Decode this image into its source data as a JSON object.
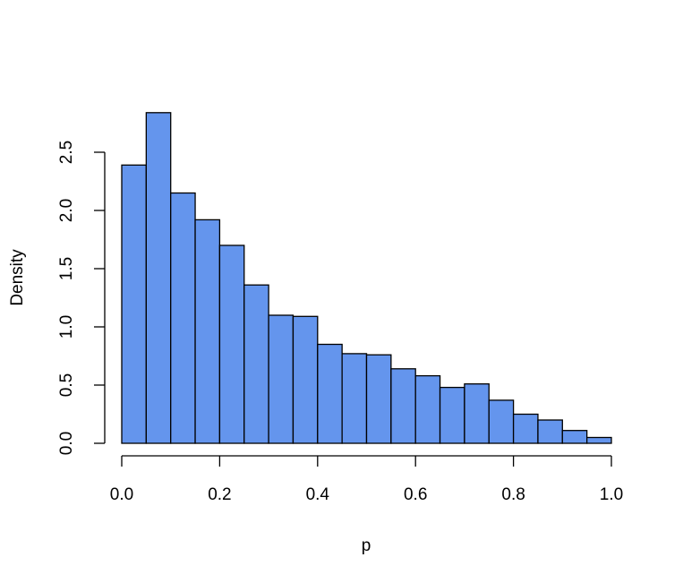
{
  "chart_data": {
    "type": "bar",
    "title": "",
    "xlabel": "p",
    "ylabel": "Density",
    "xlim": [
      0,
      1
    ],
    "ylim": [
      0,
      2.85
    ],
    "grid": false,
    "bar_color": "#6495ED",
    "bar_edge_color": "#000000",
    "x_ticks": [
      "0.0",
      "0.2",
      "0.4",
      "0.6",
      "0.8",
      "1.0"
    ],
    "y_ticks": [
      "0.0",
      "0.5",
      "1.0",
      "1.5",
      "2.0",
      "2.5"
    ],
    "bins": [
      {
        "start": 0.0,
        "end": 0.05,
        "value": 2.39
      },
      {
        "start": 0.05,
        "end": 0.1,
        "value": 2.84
      },
      {
        "start": 0.1,
        "end": 0.15,
        "value": 2.15
      },
      {
        "start": 0.15,
        "end": 0.2,
        "value": 1.92
      },
      {
        "start": 0.2,
        "end": 0.25,
        "value": 1.7
      },
      {
        "start": 0.25,
        "end": 0.3,
        "value": 1.36
      },
      {
        "start": 0.3,
        "end": 0.35,
        "value": 1.1
      },
      {
        "start": 0.35,
        "end": 0.4,
        "value": 1.09
      },
      {
        "start": 0.4,
        "end": 0.45,
        "value": 0.85
      },
      {
        "start": 0.45,
        "end": 0.5,
        "value": 0.77
      },
      {
        "start": 0.5,
        "end": 0.55,
        "value": 0.76
      },
      {
        "start": 0.55,
        "end": 0.6,
        "value": 0.64
      },
      {
        "start": 0.6,
        "end": 0.65,
        "value": 0.58
      },
      {
        "start": 0.65,
        "end": 0.7,
        "value": 0.48
      },
      {
        "start": 0.7,
        "end": 0.75,
        "value": 0.51
      },
      {
        "start": 0.75,
        "end": 0.8,
        "value": 0.37
      },
      {
        "start": 0.8,
        "end": 0.85,
        "value": 0.25
      },
      {
        "start": 0.85,
        "end": 0.9,
        "value": 0.2
      },
      {
        "start": 0.9,
        "end": 0.95,
        "value": 0.11
      },
      {
        "start": 0.95,
        "end": 1.0,
        "value": 0.05
      }
    ]
  }
}
